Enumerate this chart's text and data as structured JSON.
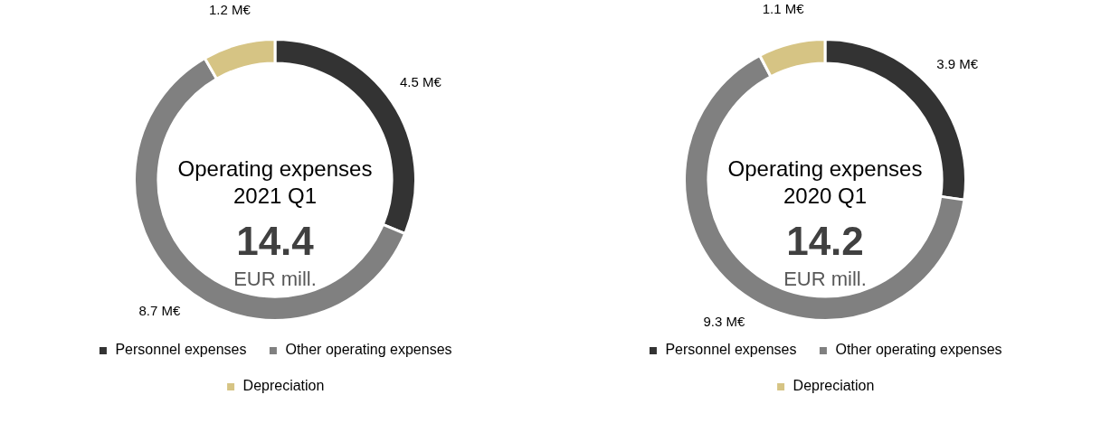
{
  "chart_data": [
    {
      "type": "donut",
      "title": "Operating expenses 2021 Q1",
      "categories": [
        "Personnel expenses",
        "Other operating expenses",
        "Depreciation"
      ],
      "values": [
        4.5,
        8.7,
        1.2
      ],
      "value_labels": [
        "4.5 M€",
        "8.7 M€",
        "1.2 M€"
      ],
      "colors": [
        "#333333",
        "#808080",
        "#d6c484"
      ],
      "annotations": [
        "14.4",
        "EUR mill."
      ],
      "legend": "bottom"
    },
    {
      "type": "donut",
      "title": "Operating expenses 2020 Q1",
      "categories": [
        "Personnel expenses",
        "Other operating expenses",
        "Depreciation"
      ],
      "values": [
        3.9,
        9.3,
        1.1
      ],
      "value_labels": [
        "3.9 M€",
        "9.3 M€",
        "1.1 M€"
      ],
      "colors": [
        "#333333",
        "#808080",
        "#d6c484"
      ],
      "annotations": [
        "14.2",
        "EUR mill."
      ],
      "legend": "bottom"
    }
  ]
}
